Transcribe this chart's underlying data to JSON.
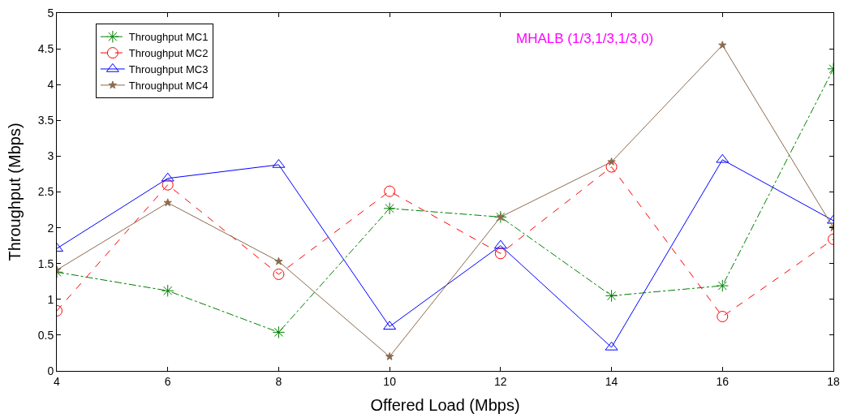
{
  "chart_data": {
    "type": "line",
    "xlabel": "Offered Load (Mbps)",
    "ylabel": "Throughput (Mbps)",
    "annotations": [
      "MHALB (1/3,1/3,1/3,0)"
    ],
    "x": [
      4,
      6,
      8,
      10,
      12,
      14,
      16,
      18
    ],
    "series": [
      {
        "name": "Throughput MC1",
        "color": "#008000",
        "marker": "cross",
        "line_style": "dashdot",
        "values": [
          1.38,
          1.12,
          0.54,
          2.27,
          2.15,
          1.05,
          1.19,
          4.22
        ]
      },
      {
        "name": "Throughput MC2",
        "color": "#ff0000",
        "marker": "circle",
        "line_style": "dashed",
        "values": [
          0.84,
          2.6,
          1.35,
          2.51,
          1.64,
          2.85,
          0.76,
          1.84
        ]
      },
      {
        "name": "Throughput MC3",
        "color": "#0000ff",
        "marker": "triangle",
        "line_style": "solid",
        "values": [
          1.71,
          2.69,
          2.88,
          0.62,
          1.75,
          0.33,
          2.95,
          2.1
        ]
      },
      {
        "name": "Throughput MC4",
        "color": "#8b6a4f",
        "marker": "star",
        "line_style": "solid",
        "values": [
          1.41,
          2.35,
          1.53,
          0.2,
          2.15,
          2.92,
          4.55,
          2.0
        ]
      }
    ],
    "xlim": [
      4,
      18
    ],
    "xticks": [
      4,
      6,
      8,
      10,
      12,
      14,
      16,
      18
    ],
    "ylim": [
      0,
      5
    ],
    "yticks": [
      0,
      0.5,
      1,
      1.5,
      2,
      2.5,
      3,
      3.5,
      4,
      4.5,
      5
    ],
    "legend": "top left"
  }
}
